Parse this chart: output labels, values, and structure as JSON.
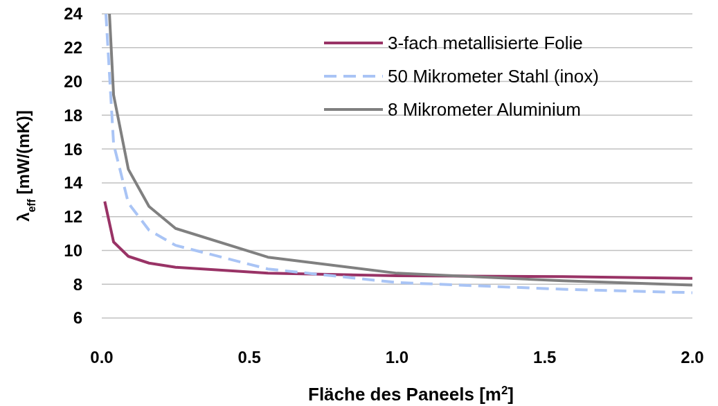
{
  "chart_data": {
    "type": "line",
    "xlabel": "Fläche des Paneels [m$^{2}$]",
    "ylabel": "λ$_{eff}$ [mW/(mK)]",
    "xlim": [
      0,
      2
    ],
    "xticks": [
      {
        "value": 0,
        "label": "0.0"
      },
      {
        "value": 0.5,
        "label": "0.5"
      },
      {
        "value": 1,
        "label": "1.0"
      },
      {
        "value": 1.5,
        "label": "1.5"
      },
      {
        "value": 2,
        "label": "2.0"
      }
    ],
    "ylim": [
      6,
      24
    ],
    "yticks": [
      6,
      8,
      10,
      12,
      14,
      16,
      18,
      20,
      22,
      24
    ],
    "grid": "y",
    "legend": "top right",
    "series": [
      {
        "name": "3-fach metallisierte Folie",
        "color": "#993366",
        "line_style": "solid",
        "x": [
          0.01,
          0.04,
          0.09,
          0.16,
          0.25,
          0.5625,
          1,
          1.5625,
          2
        ],
        "values": [
          12.9,
          10.5,
          9.65,
          9.25,
          9.0,
          8.65,
          8.5,
          8.45,
          8.35
        ]
      },
      {
        "name": "50 Mikrometer Stahl (inox)",
        "color": "#a9c4f5",
        "line_style": "dashed",
        "x": [
          0.014,
          0.04,
          0.09,
          0.16,
          0.25,
          0.5625,
          1,
          1.5625,
          2
        ],
        "values": [
          24,
          16.3,
          12.8,
          11.2,
          10.3,
          8.9,
          8.1,
          7.7,
          7.5
        ]
      },
      {
        "name": "8 Mikrometer Aluminium",
        "color": "#808080",
        "line_style": "solid",
        "x": [
          0.026,
          0.04,
          0.09,
          0.16,
          0.25,
          0.5625,
          1,
          1.5625,
          2
        ],
        "values": [
          24,
          19.2,
          14.8,
          12.6,
          11.3,
          9.6,
          8.65,
          8.2,
          7.95
        ]
      }
    ]
  }
}
